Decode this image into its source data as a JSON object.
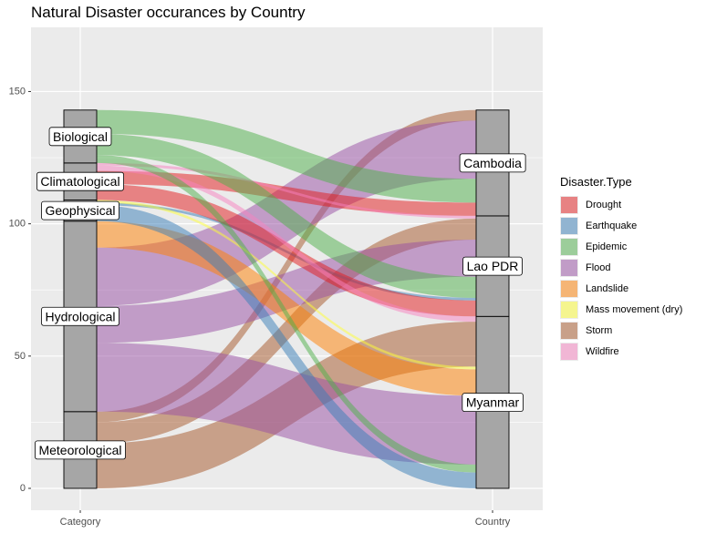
{
  "chart_data": {
    "type": "alluvial",
    "title": "Natural Disaster occurances by Country",
    "axes": [
      "Category",
      "Country"
    ],
    "ylim": [
      0,
      166
    ],
    "yticks": [
      0,
      50,
      100,
      150
    ],
    "grid": true,
    "legend": {
      "title": "Disaster.Type",
      "position": "right"
    },
    "categories": [
      "Meteorological",
      "Hydrological",
      "Geophysical",
      "Climatological",
      "Biological"
    ],
    "countries": [
      "Myanmar",
      "Lao PDR",
      "Cambodia"
    ],
    "colors": {
      "Drought": "#E41A1C",
      "Earthquake": "#377EB8",
      "Epidemic": "#4DAF4A",
      "Flood": "#984EA3",
      "Landslide": "#FF7F00",
      "Mass movement (dry)": "#FFFF33",
      "Storm": "#A65628",
      "Wildfire": "#F781BF"
    },
    "flows": [
      {
        "category": "Biological",
        "country": "Cambodia",
        "type": "Epidemic",
        "value": 9
      },
      {
        "category": "Biological",
        "country": "Lao PDR",
        "type": "Epidemic",
        "value": 8
      },
      {
        "category": "Biological",
        "country": "Myanmar",
        "type": "Epidemic",
        "value": 3
      },
      {
        "category": "Climatological",
        "country": "Cambodia",
        "type": "Drought",
        "value": 5
      },
      {
        "category": "Climatological",
        "country": "Lao PDR",
        "type": "Drought",
        "value": 6
      },
      {
        "category": "Climatological",
        "country": "Lao PDR",
        "type": "Wildfire",
        "value": 1
      },
      {
        "category": "Climatological",
        "country": "Myanmar",
        "type": "Wildfire",
        "value": 2
      },
      {
        "category": "Geophysical",
        "country": "Lao PDR",
        "type": "Earthquake",
        "value": 1
      },
      {
        "category": "Geophysical",
        "country": "Myanmar",
        "type": "Earthquake",
        "value": 6
      },
      {
        "category": "Geophysical",
        "country": "Myanmar",
        "type": "Mass movement (dry)",
        "value": 1
      },
      {
        "category": "Hydrological",
        "country": "Cambodia",
        "type": "Flood",
        "value": 22
      },
      {
        "category": "Hydrological",
        "country": "Lao PDR",
        "type": "Flood",
        "value": 14
      },
      {
        "category": "Hydrological",
        "country": "Myanmar",
        "type": "Flood",
        "value": 26
      },
      {
        "category": "Hydrological",
        "country": "Myanmar",
        "type": "Landslide",
        "value": 10
      },
      {
        "category": "Meteorological",
        "country": "Cambodia",
        "type": "Storm",
        "value": 4
      },
      {
        "category": "Meteorological",
        "country": "Lao PDR",
        "type": "Storm",
        "value": 8
      },
      {
        "category": "Meteorological",
        "country": "Myanmar",
        "type": "Storm",
        "value": 17
      }
    ]
  }
}
